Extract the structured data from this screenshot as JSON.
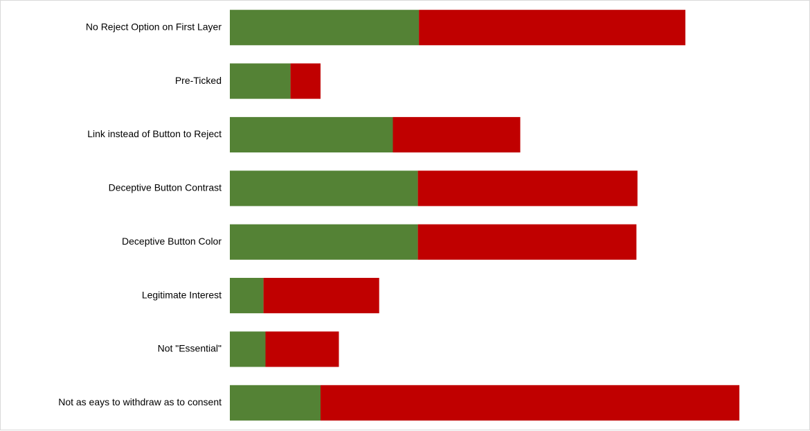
{
  "chart_data": {
    "type": "bar",
    "orientation": "horizontal",
    "stacked": true,
    "title": "",
    "xlabel": "",
    "ylabel": "",
    "grid": false,
    "legend": "none",
    "xlim": [
      0,
      100
    ],
    "categories": [
      "No Reject Option on First Layer",
      "Pre-Ticked",
      "Link instead of Button to Reject",
      "Deceptive Button Contrast",
      "Deceptive Button Color",
      "Legitimate Interest",
      "Not \"Essential\"",
      "Not as eays to withdraw as to consent"
    ],
    "series": [
      {
        "color": "#548235",
        "values": [
          37.1,
          11.9,
          32.0,
          36.9,
          36.9,
          6.6,
          7.0,
          17.8
        ]
      },
      {
        "color": "#c00000",
        "values": [
          52.3,
          5.9,
          25.0,
          43.1,
          42.9,
          22.7,
          14.4,
          82.2
        ]
      }
    ]
  }
}
